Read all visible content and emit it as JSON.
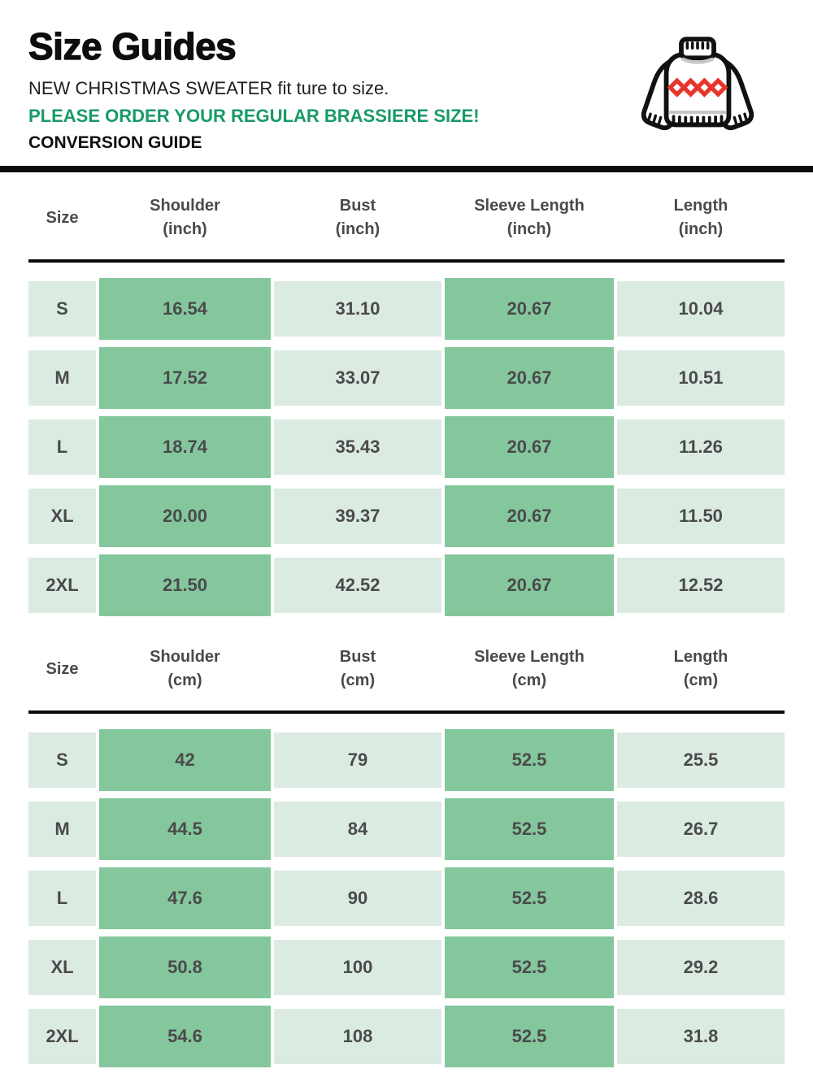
{
  "header": {
    "title": "Size Guides",
    "subtitle": "NEW CHRISTMAS SWEATER fit ture to size.",
    "notice": "PLEASE ORDER YOUR REGULAR BRASSIERE SIZE!",
    "conversion_label": "CONVERSION GUIDE",
    "icon": "christmas-sweater-icon"
  },
  "colors": {
    "notice_green": "#189a66",
    "cell_dark_green": "#85c79d",
    "cell_light_green": "#dcebe1",
    "table_text": "#4a4a4c",
    "divider_black": "#0a0a0a",
    "sweater_outline": "#111111",
    "sweater_diamond_red": "#e8352b",
    "sweater_shadow_gray": "#c6c6c6"
  },
  "tables": [
    {
      "name": "size-table-inches",
      "unit": "inch",
      "columns": [
        {
          "title": "Size",
          "sub": "",
          "highlight": false
        },
        {
          "title": "Shoulder",
          "sub": "(inch)",
          "highlight": true
        },
        {
          "title": "Bust",
          "sub": "(inch)",
          "highlight": false
        },
        {
          "title": "Sleeve Length",
          "sub": "(inch)",
          "highlight": true
        },
        {
          "title": "Length",
          "sub": "(inch)",
          "highlight": false
        }
      ],
      "rows": [
        {
          "size": "S",
          "values": [
            "16.54",
            "31.10",
            "20.67",
            "10.04"
          ]
        },
        {
          "size": "M",
          "values": [
            "17.52",
            "33.07",
            "20.67",
            "10.51"
          ]
        },
        {
          "size": "L",
          "values": [
            "18.74",
            "35.43",
            "20.67",
            "11.26"
          ]
        },
        {
          "size": "XL",
          "values": [
            "20.00",
            "39.37",
            "20.67",
            "11.50"
          ]
        },
        {
          "size": "2XL",
          "values": [
            "21.50",
            "42.52",
            "20.67",
            "12.52"
          ]
        }
      ]
    },
    {
      "name": "size-table-cm",
      "unit": "cm",
      "columns": [
        {
          "title": "Size",
          "sub": "",
          "highlight": false
        },
        {
          "title": "Shoulder",
          "sub": "(cm)",
          "highlight": true
        },
        {
          "title": "Bust",
          "sub": "(cm)",
          "highlight": false
        },
        {
          "title": "Sleeve Length",
          "sub": "(cm)",
          "highlight": true
        },
        {
          "title": "Length",
          "sub": "(cm)",
          "highlight": false
        }
      ],
      "rows": [
        {
          "size": "S",
          "values": [
            "42",
            "79",
            "52.5",
            "25.5"
          ]
        },
        {
          "size": "M",
          "values": [
            "44.5",
            "84",
            "52.5",
            "26.7"
          ]
        },
        {
          "size": "L",
          "values": [
            "47.6",
            "90",
            "52.5",
            "28.6"
          ]
        },
        {
          "size": "XL",
          "values": [
            "50.8",
            "100",
            "52.5",
            "29.2"
          ]
        },
        {
          "size": "2XL",
          "values": [
            "54.6",
            "108",
            "52.5",
            "31.8"
          ]
        }
      ]
    }
  ]
}
